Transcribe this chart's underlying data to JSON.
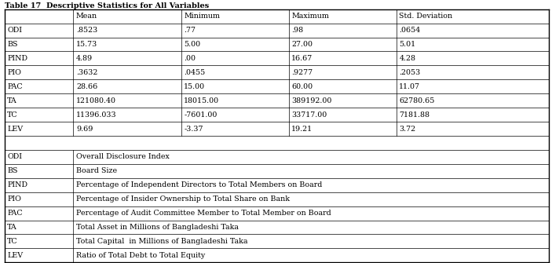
{
  "title": "Table 17  Descriptive Statistics for All Variables",
  "header": [
    "",
    "Mean",
    "Minimum",
    "Maximum",
    "Std. Deviation"
  ],
  "stats_rows": [
    [
      "ODI",
      ".8523",
      ".77",
      ".98",
      ".0654"
    ],
    [
      "BS",
      "15.73",
      "5.00",
      "27.00",
      "5.01"
    ],
    [
      "PIND",
      "4.89",
      ".00",
      "16.67",
      "4.28"
    ],
    [
      "PIO",
      ".3632",
      ".0455",
      ".9277",
      ".2053"
    ],
    [
      "PAC",
      "28.66",
      "15.00",
      "60.00",
      "11.07"
    ],
    [
      "TA",
      "121080.40",
      "18015.00",
      "389192.00",
      "62780.65"
    ],
    [
      "TC",
      "11396.033",
      "-7601.00",
      "33717.00",
      "7181.88"
    ],
    [
      "LEV",
      "9.69",
      "-3.37",
      "19.21",
      "3.72"
    ]
  ],
  "desc_rows": [
    [
      "ODI",
      "Overall Disclosure Index"
    ],
    [
      "BS",
      "Board Size"
    ],
    [
      "PIND",
      "Percentage of Independent Directors to Total Members on Board"
    ],
    [
      "PIO",
      "Percentage of Insider Ownership to Total Share on Bank"
    ],
    [
      "PAC",
      "Percentage of Audit Committee Member to Total Member on Board"
    ],
    [
      "TA",
      "Total Asset in Millions of Bangladeshi Taka"
    ],
    [
      "TC",
      "Total Capital  in Millions of Bangladeshi Taka"
    ],
    [
      "LEV",
      "Ratio of Total Debt to Total Equity"
    ]
  ],
  "bg_color": "#ffffff",
  "line_color": "#000000",
  "title_fontsize": 7.0,
  "cell_fontsize": 6.8
}
